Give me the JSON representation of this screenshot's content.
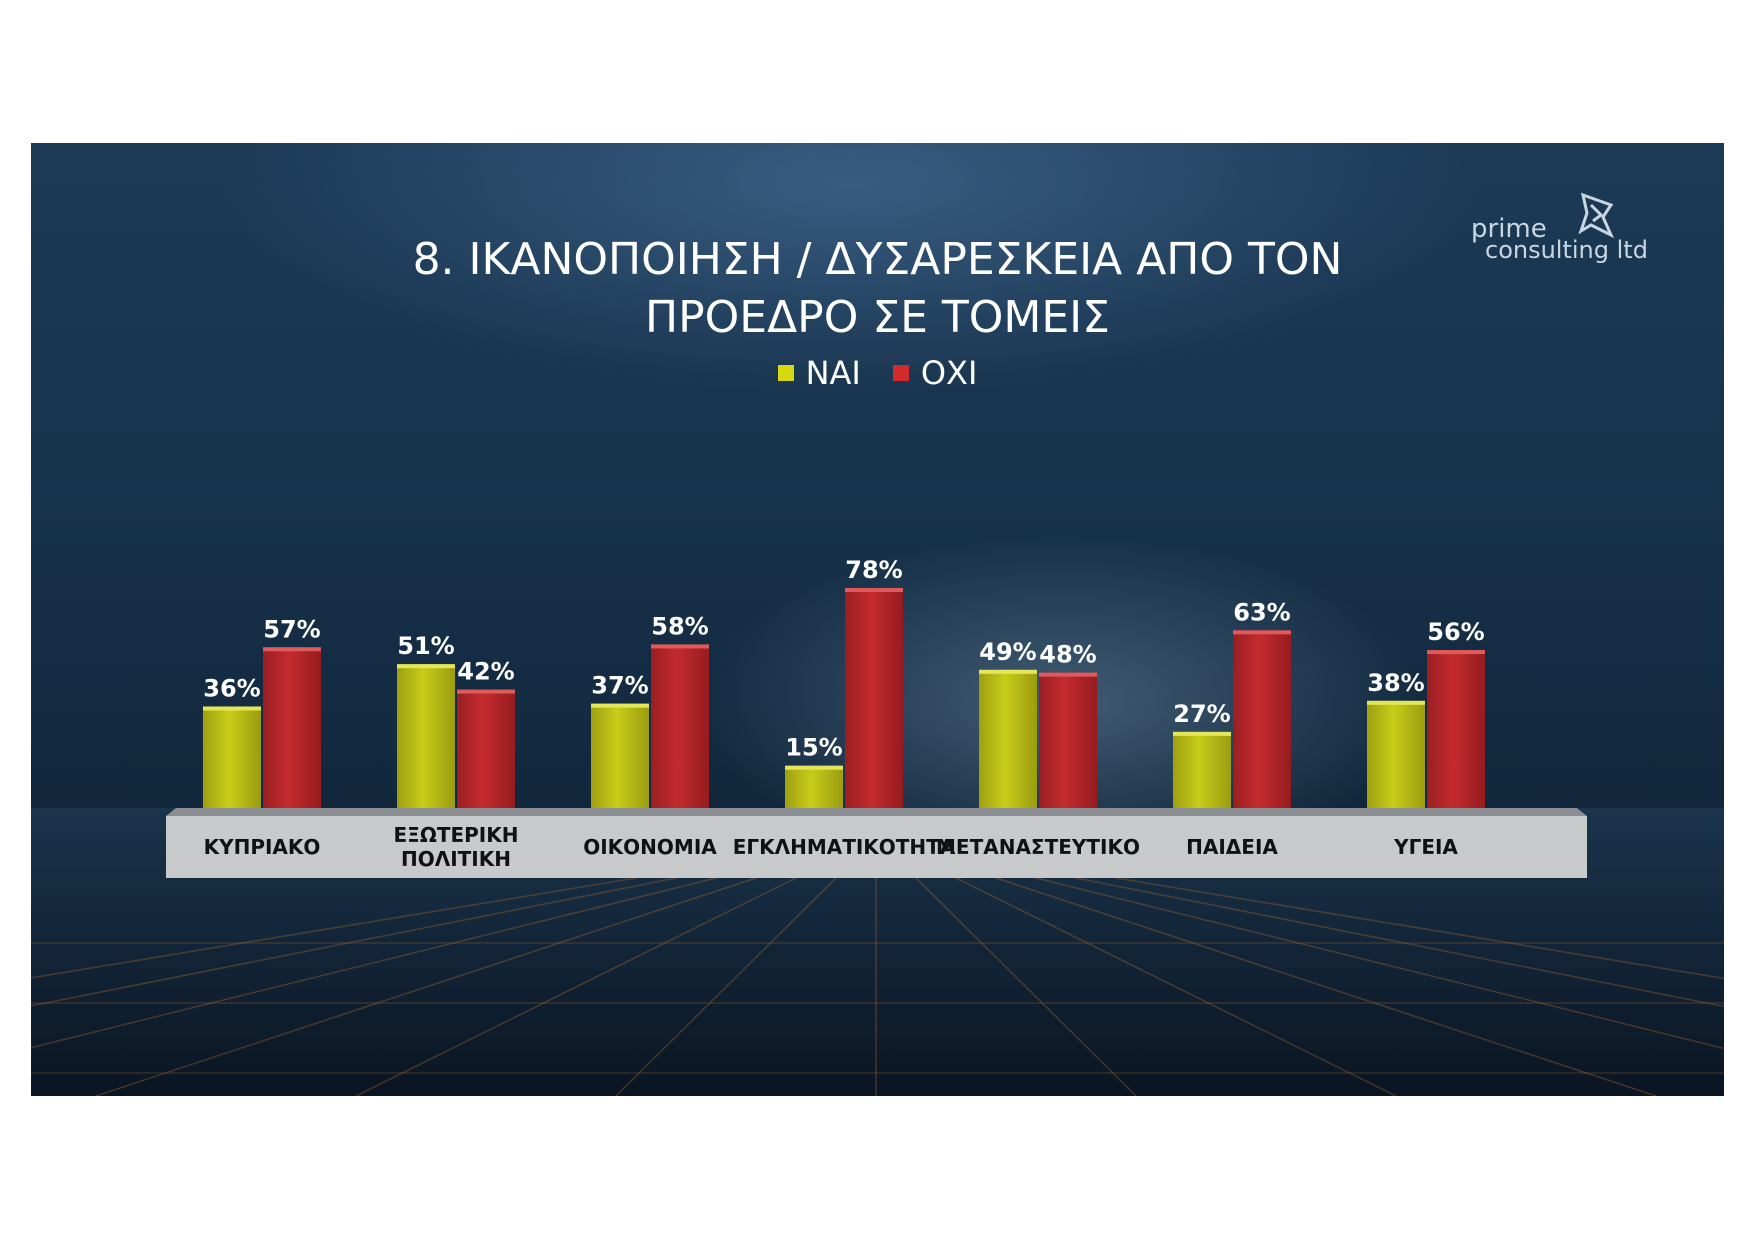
{
  "title_lines": [
    "8. ΙΚΑΝΟΠΟΙΗΣΗ / ΔΥΣΑΡΕΣΚΕΙΑ ΑΠΟ ΤΟΝ",
    "ΠΡΟΕΔΡΟ ΣΕ ΤΟΜΕΙΣ"
  ],
  "logo": {
    "line1": "prime",
    "line2": "consulting ltd",
    "icon": "star-diamond-icon"
  },
  "colors": {
    "yes": "#b4b816",
    "no": "#b5282a",
    "platform": "#c7c9cb",
    "panel": "#17324b"
  },
  "chart_data": {
    "type": "bar",
    "title": "8. ΙΚΑΝΟΠΟΙΗΣΗ / ΔΥΣΑΡΕΣΚΕΙΑ ΑΠΟ ΤΟΝ ΠΡΟΕΔΡΟ ΣΕ ΤΟΜΕΙΣ",
    "categories": [
      "ΚΥΠΡΙΑΚΟ",
      "ΕΞΩΤΕΡΙΚΗ ΠΟΛΙΤΙΚΗ",
      "ΟΙΚΟΝΟΜΙΑ",
      "ΕΓΚΛΗΜΑΤΙΚΟΤΗΤΑ",
      "ΜΕΤΑΝΑΣΤΕΥΤΙΚΟ",
      "ΠΑΙΔΕΙΑ",
      "ΥΓΕΙΑ"
    ],
    "category_lines": [
      [
        "ΚΥΠΡΙΑΚΟ"
      ],
      [
        "ΕΞΩΤΕΡΙΚΗ",
        "ΠΟΛΙΤΙΚΗ"
      ],
      [
        "ΟΙΚΟΝΟΜΙΑ"
      ],
      [
        "ΕΓΚΛΗΜΑΤΙΚΟΤΗΤΑ"
      ],
      [
        "ΜΕΤΑΝΑΣΤΕΥΤΙΚΟ"
      ],
      [
        "ΠΑΙΔΕΙΑ"
      ],
      [
        "ΥΓΕΙΑ"
      ]
    ],
    "series": [
      {
        "name": "ΝΑΙ",
        "values": [
          36,
          51,
          37,
          15,
          49,
          27,
          38
        ],
        "labels": [
          "36%",
          "51%",
          "37%",
          "15%",
          "49%",
          "27%",
          "38%"
        ]
      },
      {
        "name": "ΟΧΙ",
        "values": [
          57,
          42,
          58,
          78,
          48,
          63,
          56
        ],
        "labels": [
          "57%",
          "42%",
          "58%",
          "78%",
          "48%",
          "63%",
          "56%"
        ]
      }
    ],
    "value_suffix": "%",
    "legend_position": "top-center",
    "grid": false,
    "ylim": [
      0,
      100
    ]
  }
}
